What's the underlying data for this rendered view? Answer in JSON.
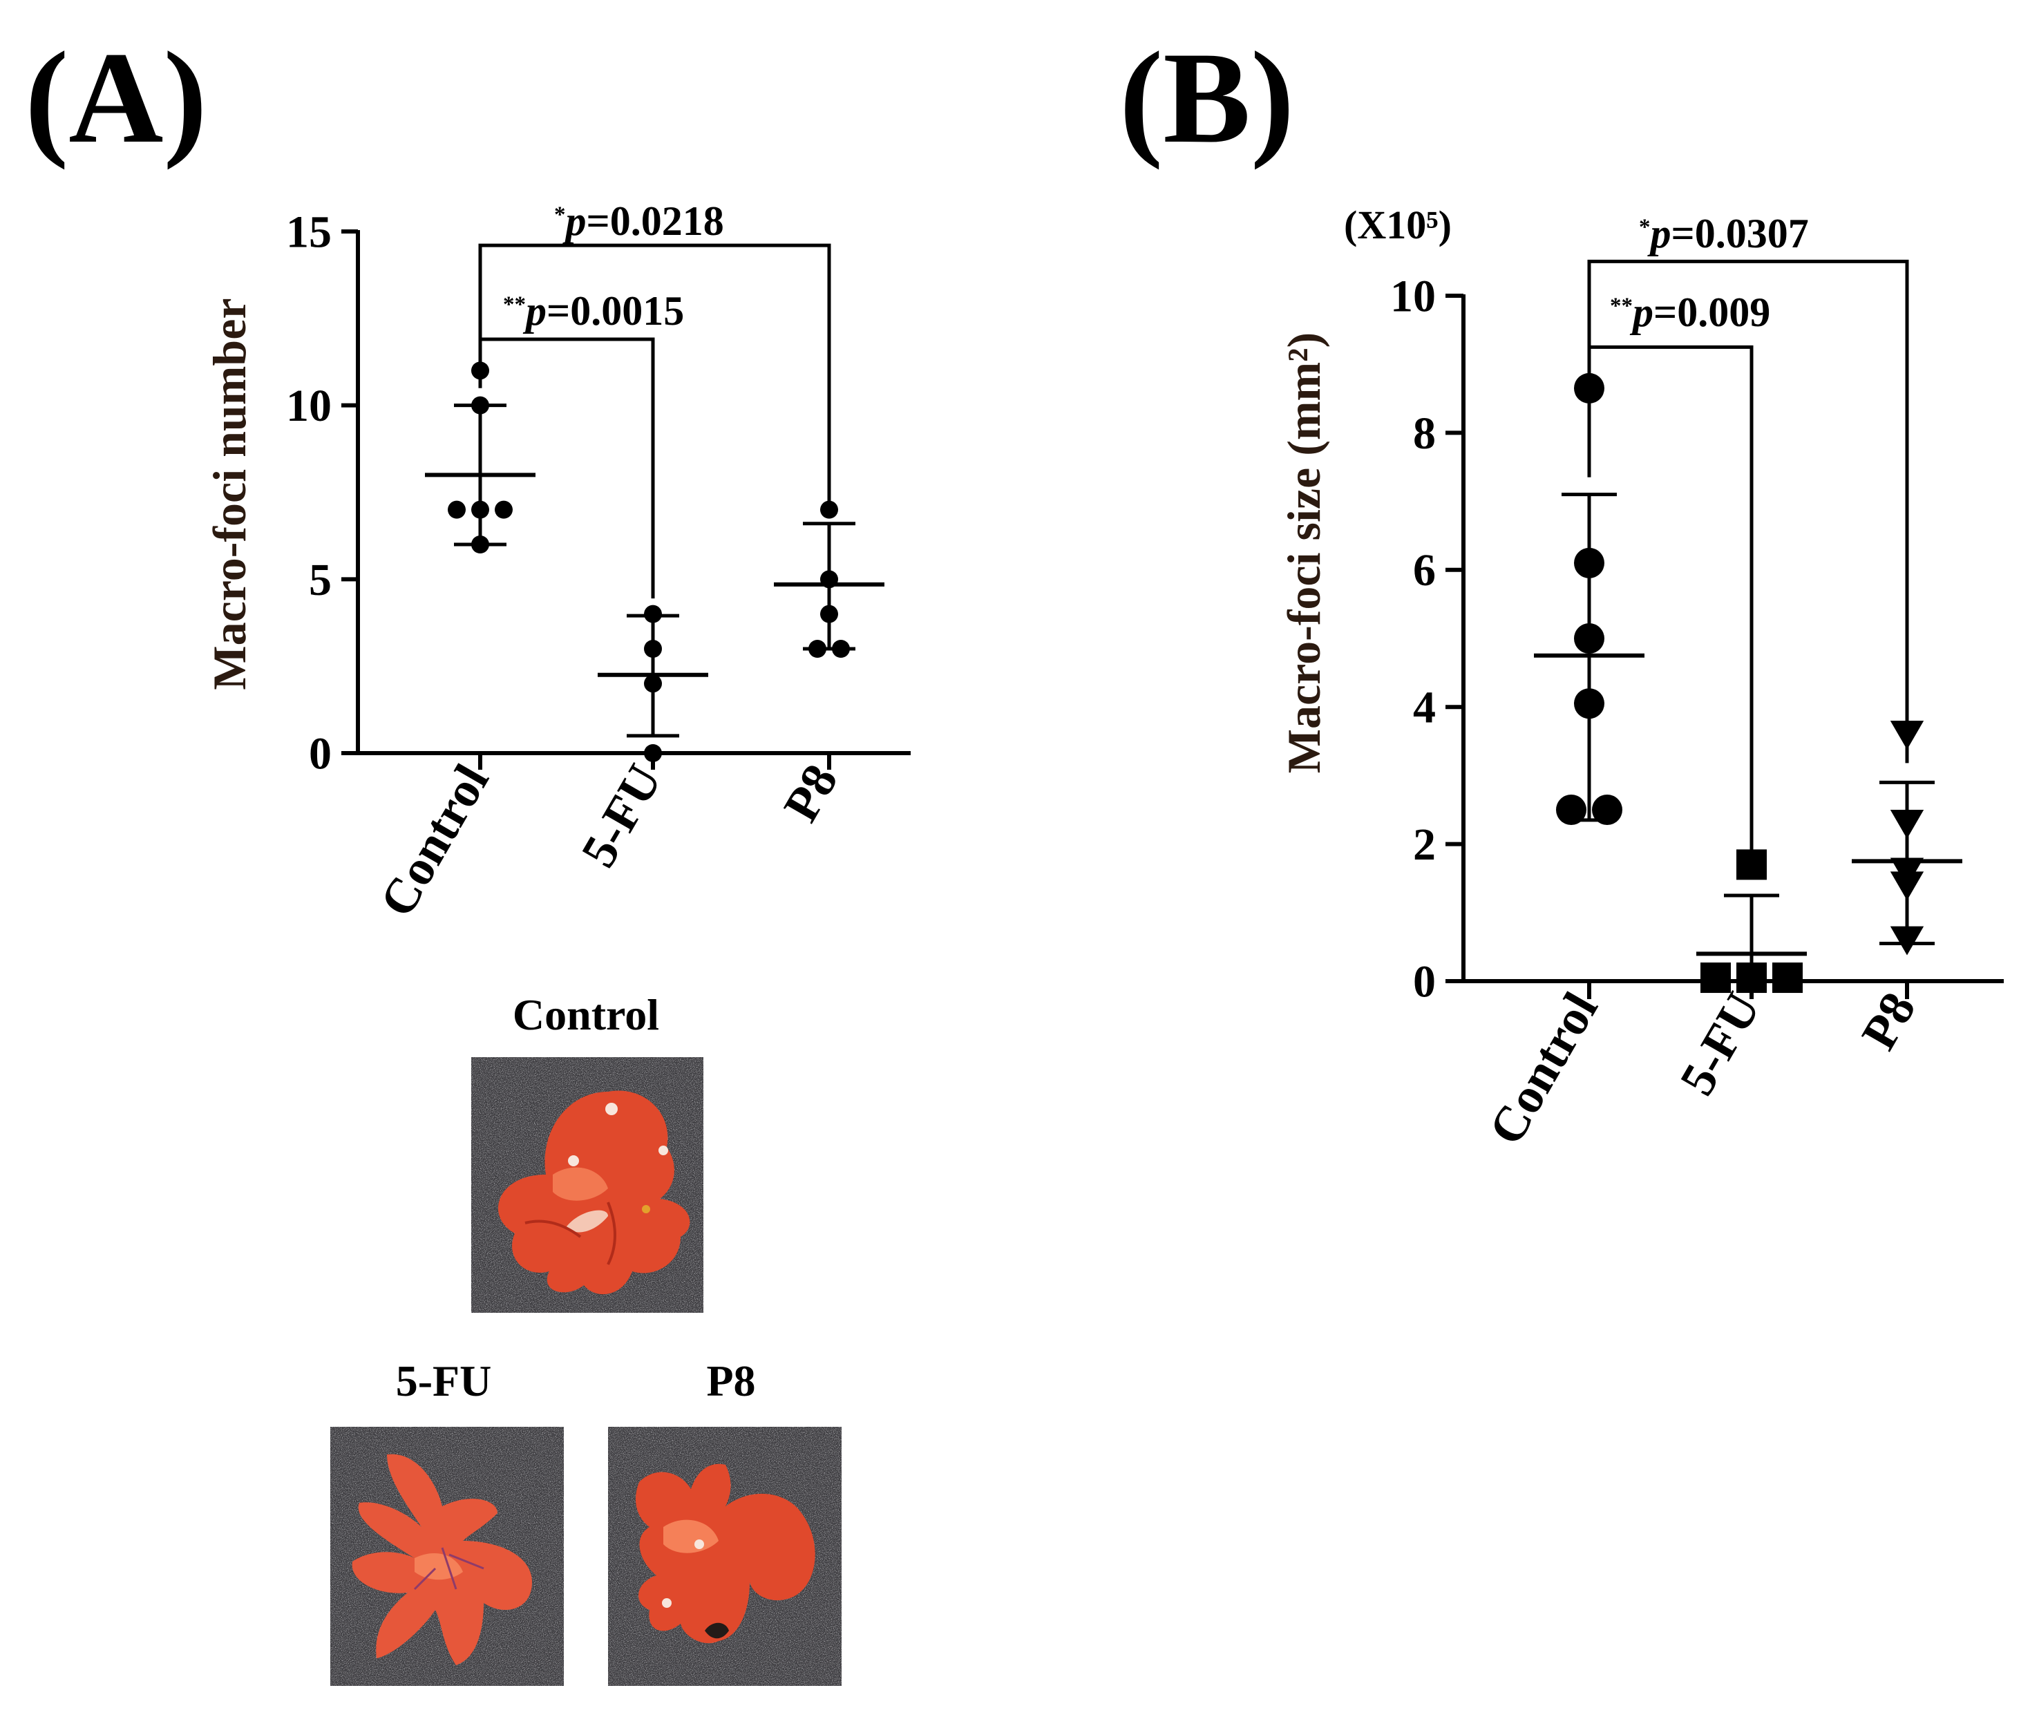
{
  "panels": {
    "A": {
      "label": "(A)",
      "photos_header": "Control",
      "photos": [
        {
          "caption": "5-FU"
        },
        {
          "caption": "P8"
        }
      ]
    },
    "B": {
      "label": "(B)",
      "scale_note": "(X10⁵)"
    }
  },
  "chart_data": [
    {
      "type": "scatter",
      "panel": "A",
      "title": "",
      "xlabel": "",
      "ylabel": "Macro-foci number",
      "categories": [
        "Control",
        "5-FU",
        "P8"
      ],
      "ylim": [
        0,
        15
      ],
      "yticks": [
        0,
        5,
        10,
        15
      ],
      "grid": false,
      "groups": [
        {
          "category": "Control",
          "points": [
            11,
            10,
            7,
            7,
            7,
            6
          ],
          "mean": 8.0,
          "sd_lower": 6.0,
          "sd_upper": 10.0,
          "marker": "circle"
        },
        {
          "category": "5-FU",
          "points": [
            4,
            3,
            2,
            0
          ],
          "mean": 2.25,
          "sd_lower": 0.5,
          "sd_upper": 3.95,
          "marker": "circle"
        },
        {
          "category": "P8",
          "points": [
            7,
            5,
            4,
            3,
            3
          ],
          "mean": 4.85,
          "sd_lower": 3.0,
          "sd_upper": 6.6,
          "marker": "circle"
        }
      ],
      "annotations": [
        {
          "from": "Control",
          "to": "P8",
          "stars": "*",
          "text": "p",
          "value": "=0.0218",
          "level": 14.6
        },
        {
          "from": "Control",
          "to": "5-FU",
          "stars": "**",
          "text": "p",
          "value": "=0.0015",
          "level": 11.9
        }
      ]
    },
    {
      "type": "scatter",
      "panel": "B",
      "title": "",
      "xlabel": "",
      "ylabel": "Macro-foci size (mm²)",
      "categories": [
        "Control",
        "5-FU",
        "P8"
      ],
      "ylim": [
        0,
        10
      ],
      "yticks": [
        0,
        2,
        4,
        6,
        8,
        10
      ],
      "grid": false,
      "groups": [
        {
          "category": "Control",
          "points": [
            8.65,
            6.1,
            5.0,
            4.05,
            2.5,
            2.5
          ],
          "mean": 4.75,
          "sd_lower": 2.35,
          "sd_upper": 7.1,
          "marker": "circle"
        },
        {
          "category": "5-FU",
          "points": [
            1.7,
            0.05,
            0.05,
            0.05
          ],
          "mean": 0.4,
          "sd_lower": 0.0,
          "sd_upper": 1.25,
          "marker": "square"
        },
        {
          "category": "P8",
          "points": [
            3.6,
            2.3,
            1.6,
            1.4,
            0.6
          ],
          "mean": 1.75,
          "sd_lower": 0.55,
          "sd_upper": 2.9,
          "marker": "triangle-down"
        }
      ],
      "annotations": [
        {
          "from": "Control",
          "to": "P8",
          "stars": "*",
          "text": "p",
          "value": "=0.0307",
          "level": 10.5
        },
        {
          "from": "Control",
          "to": "5-FU",
          "stars": "**",
          "text": "p",
          "value": "=0.009",
          "level": 9.25
        }
      ]
    }
  ],
  "colors": {
    "axis": "#000000",
    "ylabel": "#2b1a10",
    "photo_background": "#3d3c40",
    "liver": "#e0492c",
    "liver_light": "#f58058",
    "liver_dark": "#b12c1a"
  }
}
